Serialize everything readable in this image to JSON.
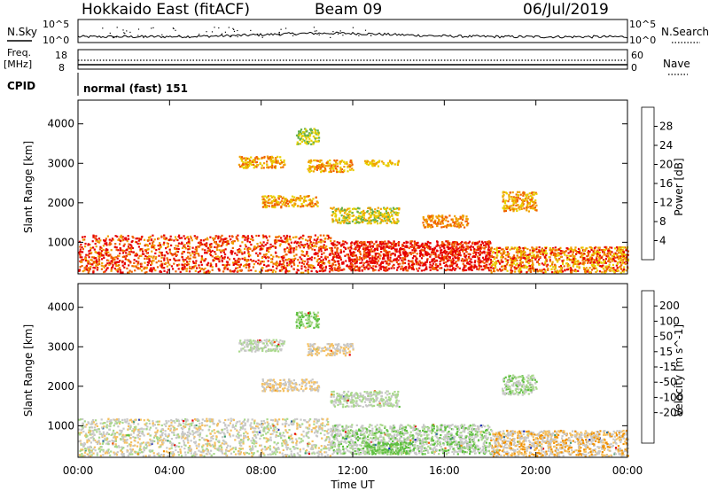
{
  "header": {
    "station": "Hokkaido East (fitACF)",
    "beam": "Beam 09",
    "date": "06/Jul/2019"
  },
  "top_panels": {
    "nsky_label": "N.Sky",
    "nsky_ticks": [
      "10^5",
      "10^0"
    ],
    "nsearch_label": "N.Search",
    "nsearch_ticks": [
      "10^5",
      "10^0"
    ],
    "freq_label_1": "Freq.",
    "freq_label_2": "[MHz]",
    "freq_ticks": [
      "18",
      "8"
    ],
    "nave_label": "Nave",
    "nave_ticks": [
      "60",
      "0"
    ],
    "cpid_label": "CPID",
    "cpid_value": "normal (fast) 151"
  },
  "chart_data": [
    {
      "type": "heatmap",
      "name": "power-panel",
      "ylabel": "Slant Range [km]",
      "xlabel": "",
      "x_ticks": [
        "00:00",
        "04:00",
        "08:00",
        "12:00",
        "16:00",
        "20:00",
        "00:00"
      ],
      "y_ticks": [
        1000,
        2000,
        3000,
        4000
      ],
      "ylim": [
        200,
        4600
      ],
      "colorbar": {
        "label": "Power [dB]",
        "tick_labels": [
          "4",
          "8",
          "12",
          "16",
          "20",
          "24",
          "28"
        ],
        "colors": [
          "#0000ff",
          "#1f4fa8",
          "#3a8a78",
          "#62b04c",
          "#e8d000",
          "#f0a000",
          "#f06000",
          "#e60000"
        ]
      },
      "blobs": [
        {
          "t0": 0.0,
          "t1": 11.0,
          "r0": 250,
          "r1": 1200,
          "levels": [
            24,
            26,
            28,
            20
          ]
        },
        {
          "t0": 11.0,
          "t1": 18.0,
          "r0": 300,
          "r1": 1050,
          "levels": [
            26,
            28,
            24
          ]
        },
        {
          "t0": 18.0,
          "t1": 24.0,
          "r0": 250,
          "r1": 900,
          "levels": [
            24,
            28,
            20,
            16
          ]
        },
        {
          "t0": 8.0,
          "t1": 10.5,
          "r0": 1900,
          "r1": 2200,
          "levels": [
            20,
            24,
            16
          ]
        },
        {
          "t0": 7.0,
          "t1": 9.0,
          "r0": 2900,
          "r1": 3200,
          "levels": [
            20,
            16,
            24
          ]
        },
        {
          "t0": 10.0,
          "t1": 12.0,
          "r0": 2800,
          "r1": 3100,
          "levels": [
            24,
            20,
            16
          ]
        },
        {
          "t0": 12.5,
          "t1": 14.0,
          "r0": 2950,
          "r1": 3100,
          "levels": [
            20,
            16
          ]
        },
        {
          "t0": 18.5,
          "t1": 20.0,
          "r0": 1800,
          "r1": 2300,
          "levels": [
            24,
            20,
            16
          ]
        },
        {
          "t0": 11.0,
          "t1": 14.0,
          "r0": 1500,
          "r1": 1900,
          "levels": [
            16,
            20,
            12
          ]
        },
        {
          "t0": 15.0,
          "t1": 17.0,
          "r0": 1400,
          "r1": 1700,
          "levels": [
            24,
            20
          ]
        },
        {
          "t0": 9.5,
          "t1": 10.5,
          "r0": 3500,
          "r1": 3900,
          "levels": [
            12,
            16
          ]
        }
      ]
    },
    {
      "type": "heatmap",
      "name": "velocity-panel",
      "ylabel": "Slant Range [km]",
      "xlabel": "Time UT",
      "x_ticks": [
        "00:00",
        "04:00",
        "08:00",
        "12:00",
        "16:00",
        "20:00",
        "00:00"
      ],
      "y_ticks": [
        1000,
        2000,
        3000,
        4000
      ],
      "ylim": [
        200,
        4600
      ],
      "colorbar": {
        "label": "Velocity [m s^-1]",
        "tick_labels": [
          "200",
          "100",
          "50",
          "15",
          "-15",
          "-50",
          "-100",
          "-200"
        ],
        "colors": [
          "#1428b4",
          "#2e6e9e",
          "#3c9a6a",
          "#5ec040",
          "#a8d88a",
          "#c8c8c8",
          "#f5c060",
          "#f09000",
          "#f05000",
          "#e60000"
        ]
      },
      "blobs": [
        {
          "t0": 0.0,
          "t1": 11.0,
          "r0": 250,
          "r1": 1200,
          "levels": [
            5,
            5,
            4,
            6
          ]
        },
        {
          "t0": 11.0,
          "t1": 18.0,
          "r0": 300,
          "r1": 1050,
          "levels": [
            5,
            3,
            4,
            5
          ]
        },
        {
          "t0": 18.0,
          "t1": 24.0,
          "r0": 250,
          "r1": 900,
          "levels": [
            5,
            6,
            5,
            7
          ]
        },
        {
          "t0": 8.0,
          "t1": 10.5,
          "r0": 1900,
          "r1": 2200,
          "levels": [
            5,
            6
          ]
        },
        {
          "t0": 7.0,
          "t1": 9.0,
          "r0": 2900,
          "r1": 3200,
          "levels": [
            5,
            4
          ]
        },
        {
          "t0": 10.0,
          "t1": 12.0,
          "r0": 2800,
          "r1": 3100,
          "levels": [
            5,
            6
          ]
        },
        {
          "t0": 18.5,
          "t1": 20.0,
          "r0": 1800,
          "r1": 2300,
          "levels": [
            5,
            4,
            3
          ]
        },
        {
          "t0": 11.0,
          "t1": 14.0,
          "r0": 1500,
          "r1": 1900,
          "levels": [
            5,
            4
          ]
        },
        {
          "t0": 12.5,
          "t1": 14.5,
          "r0": 300,
          "r1": 600,
          "levels": [
            3,
            4,
            3
          ]
        },
        {
          "t0": 9.5,
          "t1": 10.5,
          "r0": 3500,
          "r1": 3900,
          "levels": [
            3,
            4
          ]
        }
      ]
    }
  ]
}
